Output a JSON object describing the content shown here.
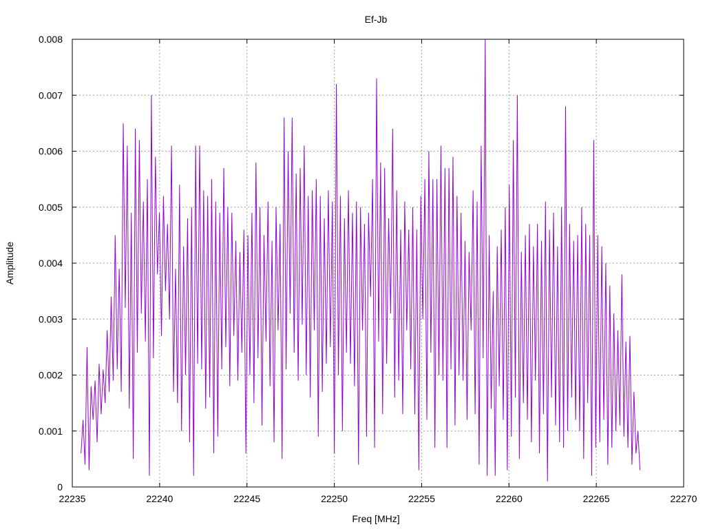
{
  "chart_data": {
    "type": "line",
    "title": "Ef-Jb",
    "xlabel": "Freq [MHz]",
    "ylabel": "Amplitude",
    "xlim": [
      22235,
      22270
    ],
    "ylim": [
      0,
      0.008
    ],
    "grid": true,
    "x_ticks": [
      "22235",
      "22240",
      "22245",
      "22250",
      "22255",
      "22260",
      "22265",
      "22270"
    ],
    "y_ticks": [
      "0",
      "0.001",
      "0.002",
      "0.003",
      "0.004",
      "0.005",
      "0.006",
      "0.007",
      "0.008"
    ],
    "series": [
      {
        "color": "#9400d3",
        "x_start": 22235.5,
        "x_end": 22267.5,
        "values": [
          0.0006,
          0.0012,
          0.0004,
          0.0025,
          0.0003,
          0.0018,
          0.0012,
          0.0019,
          0.0008,
          0.0022,
          0.0013,
          0.0021,
          0.0015,
          0.0028,
          0.0017,
          0.0034,
          0.0019,
          0.0045,
          0.0021,
          0.0039,
          0.0017,
          0.0065,
          0.0032,
          0.0061,
          0.0014,
          0.0049,
          0.0005,
          0.0064,
          0.0024,
          0.0062,
          0.0031,
          0.0051,
          0.0026,
          0.0055,
          0.0002,
          0.007,
          0.0023,
          0.0059,
          0.0038,
          0.0049,
          0.0027,
          0.0052,
          0.0035,
          0.0047,
          0.003,
          0.0061,
          0.0017,
          0.0039,
          0.0015,
          0.0054,
          0.001,
          0.0043,
          0.002,
          0.0048,
          0.0008,
          0.005,
          0.0002,
          0.0061,
          0.0022,
          0.0061,
          0.0021,
          0.0053,
          0.0014,
          0.0052,
          0.0016,
          0.0055,
          0.0006,
          0.0051,
          0.0009,
          0.0049,
          0.0021,
          0.0057,
          0.0025,
          0.005,
          0.0018,
          0.0049,
          0.0027,
          0.0044,
          0.0019,
          0.0042,
          0.0024,
          0.0046,
          0.0006,
          0.0045,
          0.002,
          0.0049,
          0.0015,
          0.0058,
          0.0023,
          0.005,
          0.0011,
          0.0045,
          0.0026,
          0.0051,
          0.0018,
          0.0044,
          0.0008,
          0.005,
          0.0028,
          0.0047,
          0.0005,
          0.0066,
          0.0021,
          0.006,
          0.0031,
          0.0066,
          0.0024,
          0.0056,
          0.0019,
          0.0057,
          0.0029,
          0.0061,
          0.002,
          0.0052,
          0.0016,
          0.0053,
          0.0028,
          0.0055,
          0.0009,
          0.0052,
          0.0017,
          0.0048,
          0.0022,
          0.0053,
          0.0025,
          0.0051,
          0.0006,
          0.0072,
          0.002,
          0.0052,
          0.001,
          0.0048,
          0.0024,
          0.0053,
          0.0022,
          0.0049,
          0.0018,
          0.0051,
          0.0004,
          0.005,
          0.0028,
          0.0047,
          0.0009,
          0.0049,
          0.0034,
          0.0055,
          0.0007,
          0.0073,
          0.0026,
          0.0058,
          0.0013,
          0.0057,
          0.0022,
          0.0048,
          0.0031,
          0.0064,
          0.0016,
          0.0053,
          0.0019,
          0.0046,
          0.0013,
          0.0051,
          0.0028,
          0.0046,
          0.0021,
          0.005,
          0.0013,
          0.0046,
          0.0003,
          0.0052,
          0.003,
          0.0055,
          0.0012,
          0.006,
          0.0024,
          0.0055,
          0.0007,
          0.0055,
          0.002,
          0.0061,
          0.0019,
          0.0057,
          0.0007,
          0.0057,
          0.0021,
          0.0059,
          0.0011,
          0.0052,
          0.002,
          0.0049,
          0.0019,
          0.0044,
          0.0012,
          0.0042,
          0.0028,
          0.0053,
          0.0013,
          0.0051,
          0.0004,
          0.0061,
          0.0023,
          0.008,
          0.0002,
          0.0045,
          0.0014,
          0.0035,
          0.0002,
          0.0043,
          0.0018,
          0.0046,
          0.0012,
          0.005,
          0.0003,
          0.0054,
          0.0009,
          0.0062,
          0.0016,
          0.007,
          0.0005,
          0.0042,
          0.0015,
          0.0045,
          0.0012,
          0.0047,
          0.0008,
          0.0043,
          0.0019,
          0.0047,
          0.0006,
          0.0044,
          0.0013,
          0.0051,
          0.0001,
          0.0046,
          0.0016,
          0.0049,
          0.0011,
          0.0043,
          0.0008,
          0.005,
          0.0007,
          0.0068,
          0.001,
          0.0047,
          0.0016,
          0.0044,
          0.0012,
          0.0045,
          0.001,
          0.005,
          0.0005,
          0.0047,
          0.0015,
          0.0045,
          0.0002,
          0.0062,
          0.0007,
          0.0045,
          0.0008,
          0.0043,
          0.0012,
          0.004,
          0.0004,
          0.0036,
          0.0007,
          0.0031,
          0.001,
          0.0028,
          0.0011,
          0.0038,
          0.0009,
          0.0026,
          0.0007,
          0.0027,
          0.0004,
          0.0017,
          0.0006,
          0.001,
          0.0003
        ]
      }
    ]
  }
}
